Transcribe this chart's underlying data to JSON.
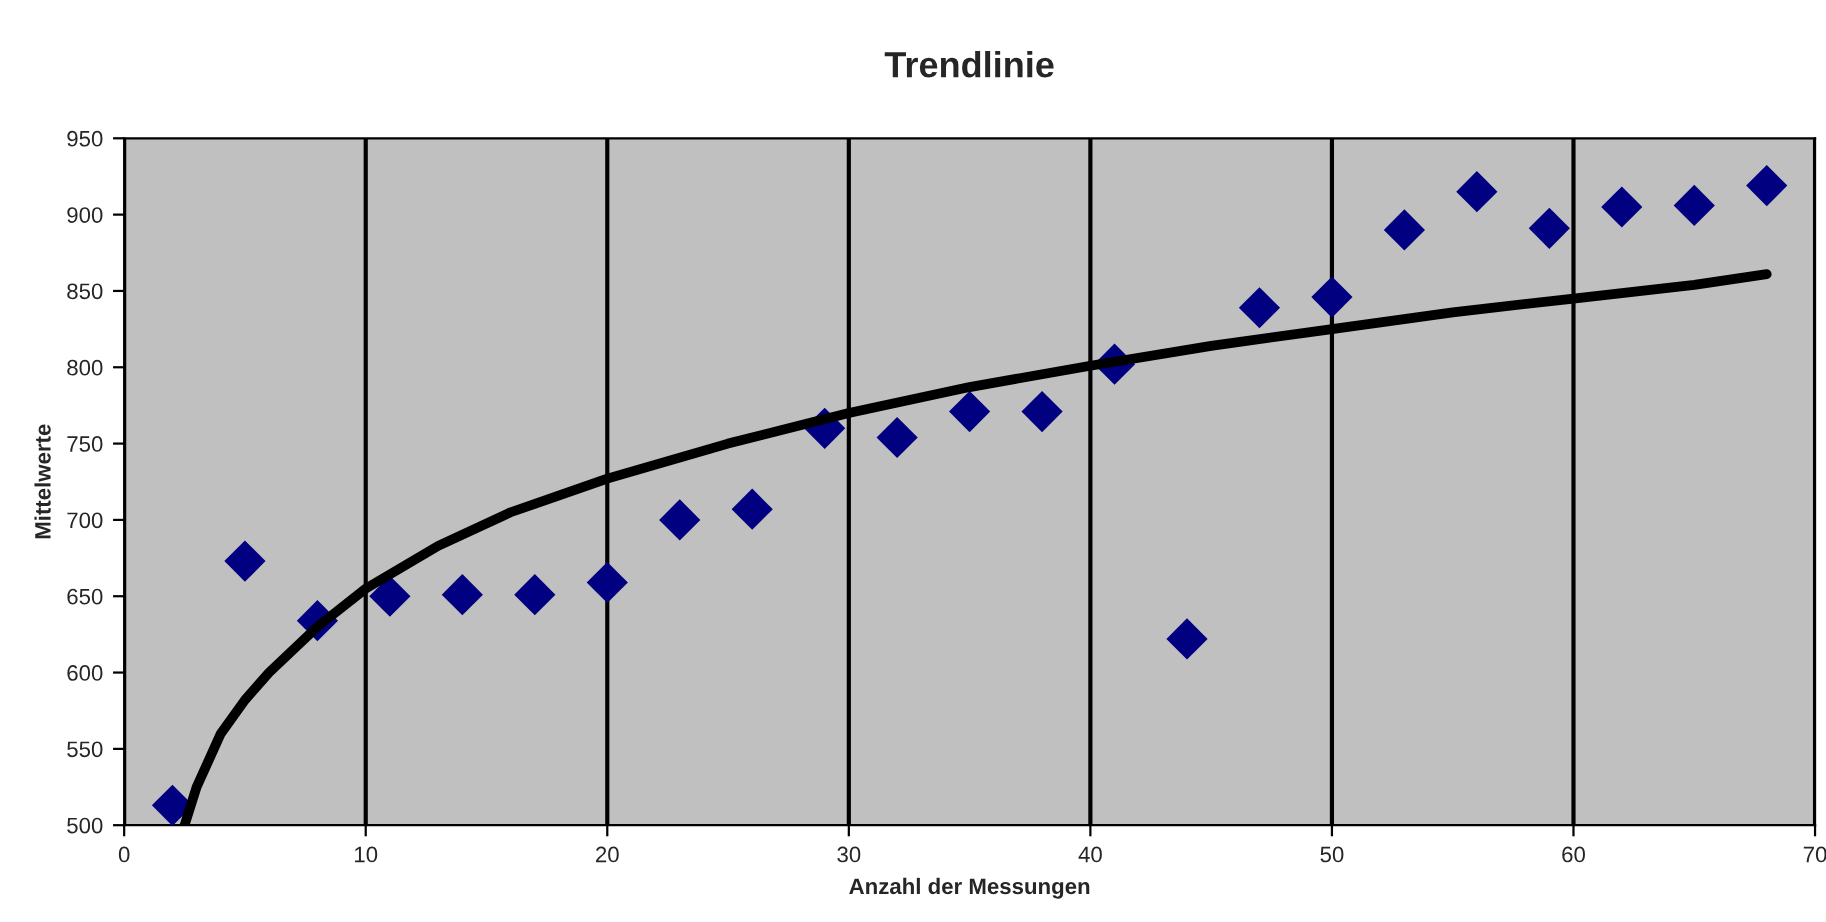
{
  "chart_data": {
    "type": "scatter",
    "title": "Trendlinie",
    "xlabel": "Anzahl der Messungen",
    "ylabel": "Mittelwerte",
    "xlim": [
      0,
      70
    ],
    "xticks": [
      0,
      10,
      20,
      30,
      40,
      50,
      60,
      70
    ],
    "ylim": [
      500,
      950
    ],
    "yticks": [
      500,
      550,
      600,
      650,
      700,
      750,
      800,
      850,
      900,
      950
    ],
    "grid": "x",
    "legend": false,
    "series": [
      {
        "marker": "diamond",
        "color": "#000080",
        "x": [
          2,
          5,
          8,
          11,
          14,
          17,
          20,
          23,
          26,
          29,
          32,
          35,
          38,
          41,
          44,
          47,
          50,
          53,
          56,
          59,
          62,
          65,
          68
        ],
        "values": [
          513,
          673,
          634,
          650,
          651,
          651,
          659,
          700,
          707,
          760,
          754,
          771,
          771,
          802,
          622,
          839,
          846,
          890,
          915,
          891,
          905,
          906,
          919
        ]
      },
      {
        "type": "line",
        "marker": "none",
        "color": "#000000",
        "line_style": "solid",
        "x": [
          2.5,
          3,
          4,
          5,
          6,
          8,
          10,
          13,
          16,
          20,
          25,
          30,
          35,
          40,
          45,
          50,
          55,
          60,
          65,
          68
        ],
        "values": [
          500,
          525,
          560,
          582,
          600,
          630,
          655,
          683,
          705,
          727,
          750,
          770,
          787,
          801,
          814,
          825,
          836,
          845,
          854,
          861
        ]
      }
    ]
  }
}
